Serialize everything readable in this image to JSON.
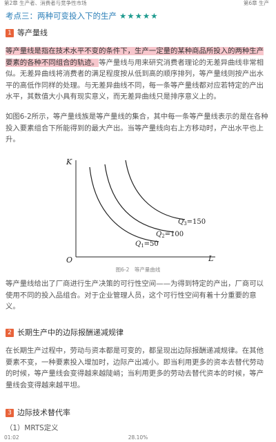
{
  "topbar": {
    "left": "第2章 生产者、消费者与竞争性市场",
    "right": "第6章 生产"
  },
  "section": {
    "title": "考点三：两种可变投入下的生产",
    "stars": "★★★★★"
  },
  "h1": {
    "num": "1",
    "text": "等产量线"
  },
  "p1": {
    "hl": "等产量线是指在技术水平不变的条件下，生产一定量的某种商品所投入的两种生产要素的各种不同组合的轨迹。",
    "rest": "等产量线与用来研究消费者理论的无差异曲线非常相似。无差异曲线将消费者的满足程度按从低到高的顺序排列，等产量线则按产出水平的高低作同样的处理。与无差异曲线不同，每一条等产量线都对应若特定的产出水平，其数值大小具有现实意义，而无差异曲线只是排序意义上的。"
  },
  "p2": "如图6-2所示，等产量线族是等产量线的集合，其中每一条等产量线表示的是在各种投入要素组合下所能得到的最大产出。当等产量线向右上方移动时，产出水平也上升。",
  "chart_data": {
    "type": "line",
    "title": "",
    "xlabel": "L",
    "ylabel": "K",
    "origin_label": "O",
    "series": [
      {
        "name": "Q1=50",
        "label_base": "Q",
        "label_sub": "1",
        "label_val": "=50"
      },
      {
        "name": "Q2=100",
        "label_base": "Q",
        "label_sub": "2",
        "label_val": "=100"
      },
      {
        "name": "Q3=150",
        "label_base": "Q",
        "label_sub": "3",
        "label_val": "=150"
      }
    ]
  },
  "caption": "图6-2　等产量曲线",
  "p3": "等产量线给出了厂商进行生产决策的可行性空间——为得到特定的产出，厂商可以使用不同的投入品组合。对于企业管理人员，这个可行性空间有着十分重要的意义。",
  "h2": {
    "num": "2",
    "text": "长期生产中的边际报酬递减规律"
  },
  "p4": "在长期生产过程中，劳动与资本都是可变的，都呈现出边际报酬递减规律。在其他要素不变，一种要素投入增加时，边际产出减小。即当利用更多的资本去替代劳动的时候，等产量线会变得越来越陡峭；当利用更多的劳动去替代资本的时候，等产量线会变得越来越平坦。",
  "h3": {
    "num": "3",
    "text": "边际技术替代率"
  },
  "h3sub": "（1）MRTS定义",
  "bottombar": {
    "left": "01:02",
    "center": "28.10%"
  }
}
